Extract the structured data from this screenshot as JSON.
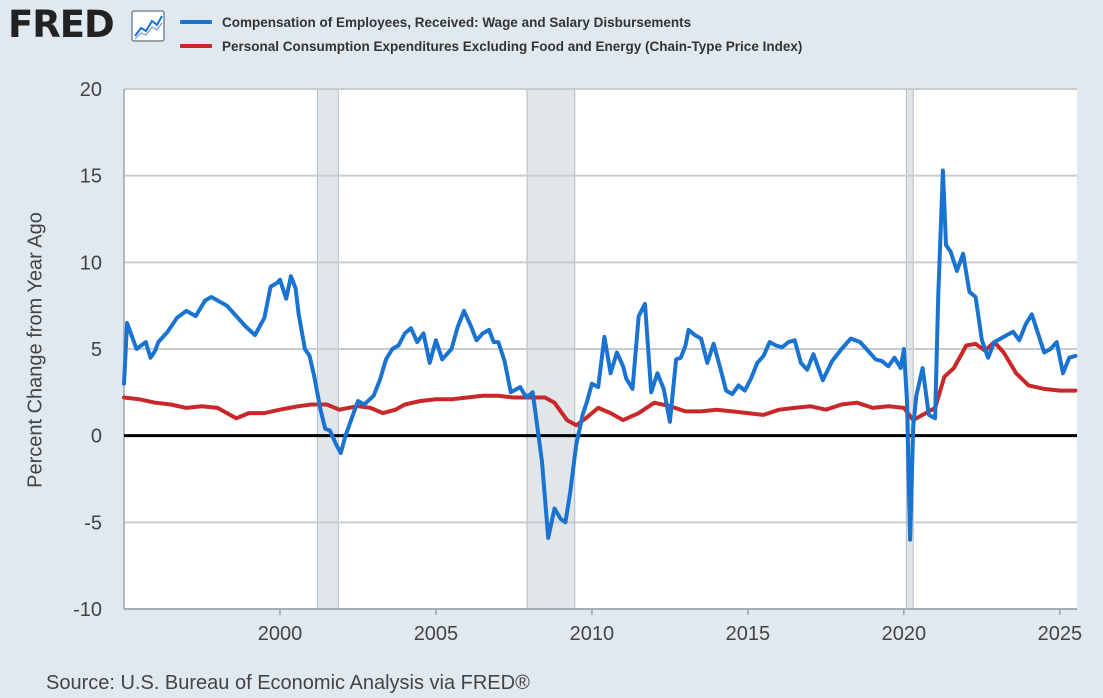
{
  "header": {
    "logo_text": "FRED",
    "logo_icon": "line-chart-icon"
  },
  "source_text": "Source: U.S. Bureau of Economic Analysis via FRED®",
  "chart_data": {
    "type": "line",
    "title": "",
    "xlabel": "",
    "ylabel": "Percent Change from Year Ago",
    "xlim": [
      1995.0,
      2025.55
    ],
    "ylim": [
      -10,
      20
    ],
    "yticks": [
      20,
      15,
      10,
      5,
      0,
      -5,
      -10
    ],
    "ytick_labels": [
      "20",
      "15",
      "10",
      "5",
      "0",
      "-5",
      "-10"
    ],
    "xticks": [
      2000,
      2005,
      2010,
      2015,
      2020,
      2025
    ],
    "xtick_labels": [
      "2000",
      "2005",
      "2010",
      "2015",
      "2020",
      "2025"
    ],
    "grid": "horizontal",
    "legend_position": "top",
    "zero_line": 0,
    "recessions": [
      {
        "start": 2001.2,
        "end": 2001.87
      },
      {
        "start": 2007.92,
        "end": 2009.45
      },
      {
        "start": 2020.08,
        "end": 2020.3
      }
    ],
    "colors": {
      "background": "#e1e9f0",
      "plot_bg": "#ffffff",
      "grid": "#c8cdd2",
      "recession": "#e1e6ea",
      "zero_line": "#000000"
    },
    "series": [
      {
        "name": "Compensation of Employees, Received: Wage and Salary Disbursements",
        "color": "#1a73d0",
        "x": [
          1995.0,
          1995.1,
          1995.4,
          1995.7,
          1995.85,
          1996.0,
          1996.1,
          1996.4,
          1996.7,
          1997.0,
          1997.3,
          1997.6,
          1997.8,
          1998.0,
          1998.3,
          1998.6,
          1998.9,
          1999.2,
          1999.5,
          1999.7,
          1999.9,
          2000.0,
          2000.2,
          2000.35,
          2000.5,
          2000.6,
          2000.8,
          2000.95,
          2001.1,
          2001.3,
          2001.45,
          2001.6,
          2001.8,
          2001.95,
          2002.1,
          2002.3,
          2002.5,
          2002.7,
          2003.0,
          2003.2,
          2003.4,
          2003.6,
          2003.8,
          2004.0,
          2004.2,
          2004.4,
          2004.6,
          2004.8,
          2005.0,
          2005.2,
          2005.5,
          2005.7,
          2005.9,
          2006.1,
          2006.3,
          2006.5,
          2006.7,
          2006.85,
          2007.0,
          2007.2,
          2007.4,
          2007.7,
          2007.9,
          2008.1,
          2008.4,
          2008.6,
          2008.8,
          2009.0,
          2009.15,
          2009.3,
          2009.5,
          2009.7,
          2009.85,
          2010.0,
          2010.2,
          2010.4,
          2010.6,
          2010.8,
          2011.0,
          2011.1,
          2011.3,
          2011.5,
          2011.7,
          2011.9,
          2012.1,
          2012.3,
          2012.5,
          2012.7,
          2012.85,
          2013.0,
          2013.1,
          2013.3,
          2013.5,
          2013.7,
          2013.9,
          2014.1,
          2014.3,
          2014.5,
          2014.7,
          2014.9,
          2015.1,
          2015.3,
          2015.5,
          2015.7,
          2015.9,
          2016.1,
          2016.3,
          2016.5,
          2016.7,
          2016.9,
          2017.1,
          2017.4,
          2017.7,
          2018.0,
          2018.3,
          2018.6,
          2018.9,
          2019.1,
          2019.3,
          2019.5,
          2019.7,
          2019.9,
          2020.0,
          2020.1,
          2020.2,
          2020.3,
          2020.4,
          2020.6,
          2020.8,
          2021.0,
          2021.1,
          2021.25,
          2021.35,
          2021.5,
          2021.7,
          2021.9,
          2022.1,
          2022.3,
          2022.5,
          2022.7,
          2022.9,
          2023.1,
          2023.3,
          2023.5,
          2023.7,
          2023.9,
          2024.1,
          2024.3,
          2024.5,
          2024.7,
          2024.9,
          2025.1,
          2025.3,
          2025.5
        ],
        "values": [
          3.0,
          6.5,
          5.0,
          5.4,
          4.5,
          4.9,
          5.4,
          6.0,
          6.8,
          7.2,
          6.9,
          7.8,
          8.0,
          7.8,
          7.5,
          6.9,
          6.3,
          5.8,
          6.8,
          8.6,
          8.8,
          9.0,
          7.9,
          9.2,
          8.5,
          7.0,
          5.0,
          4.6,
          3.4,
          1.5,
          0.4,
          0.3,
          -0.5,
          -1.0,
          0.0,
          1.0,
          2.0,
          1.8,
          2.3,
          3.2,
          4.4,
          5.0,
          5.2,
          5.9,
          6.2,
          5.4,
          5.9,
          4.2,
          5.5,
          4.4,
          5.0,
          6.3,
          7.2,
          6.4,
          5.5,
          5.9,
          6.1,
          5.4,
          5.4,
          4.3,
          2.5,
          2.8,
          2.2,
          2.5,
          -1.5,
          -5.9,
          -4.2,
          -4.8,
          -5.0,
          -3.3,
          -0.5,
          1.2,
          2.0,
          3.0,
          2.8,
          5.7,
          3.6,
          4.8,
          4.0,
          3.3,
          2.7,
          6.9,
          7.6,
          2.5,
          3.6,
          2.7,
          0.8,
          4.4,
          4.5,
          5.2,
          6.1,
          5.8,
          5.6,
          4.2,
          5.3,
          4.0,
          2.6,
          2.4,
          2.9,
          2.6,
          3.3,
          4.2,
          4.6,
          5.4,
          5.2,
          5.1,
          5.4,
          5.5,
          4.2,
          3.8,
          4.7,
          3.2,
          4.3,
          5.0,
          5.6,
          5.4,
          4.8,
          4.4,
          4.3,
          4.0,
          4.5,
          3.9,
          5.0,
          2.0,
          -6.0,
          0.5,
          2.3,
          3.9,
          1.2,
          1.0,
          8.0,
          15.3,
          11.0,
          10.6,
          9.5,
          10.5,
          8.3,
          8.0,
          5.5,
          4.5,
          5.4,
          5.6,
          5.8,
          6.0,
          5.5,
          6.4,
          7.0,
          5.9,
          4.8,
          5.0,
          5.4,
          3.6,
          4.5,
          4.6
        ]
      },
      {
        "name": "Personal Consumption Expenditures Excluding Food and Energy (Chain-Type Price Index)",
        "color": "#c9282a",
        "x": [
          1995.0,
          1995.5,
          1996.0,
          1996.5,
          1997.0,
          1997.5,
          1998.0,
          1998.3,
          1998.6,
          1999.0,
          1999.5,
          2000.0,
          2000.3,
          2000.6,
          2001.0,
          2001.5,
          2001.9,
          2002.2,
          2002.5,
          2002.9,
          2003.3,
          2003.7,
          2004.0,
          2004.5,
          2005.0,
          2005.5,
          2006.0,
          2006.5,
          2007.0,
          2007.5,
          2008.0,
          2008.5,
          2008.8,
          2009.2,
          2009.5,
          2009.8,
          2010.2,
          2010.6,
          2011.0,
          2011.5,
          2012.0,
          2012.5,
          2013.0,
          2013.5,
          2014.0,
          2014.5,
          2015.0,
          2015.5,
          2016.0,
          2016.5,
          2017.0,
          2017.5,
          2018.0,
          2018.5,
          2019.0,
          2019.5,
          2020.0,
          2020.3,
          2020.6,
          2021.0,
          2021.3,
          2021.6,
          2022.0,
          2022.3,
          2022.6,
          2022.9,
          2023.2,
          2023.6,
          2024.0,
          2024.5,
          2025.0,
          2025.5
        ],
        "values": [
          2.2,
          2.1,
          1.9,
          1.8,
          1.6,
          1.7,
          1.6,
          1.3,
          1.0,
          1.3,
          1.3,
          1.5,
          1.6,
          1.7,
          1.8,
          1.8,
          1.5,
          1.6,
          1.7,
          1.6,
          1.3,
          1.5,
          1.8,
          2.0,
          2.1,
          2.1,
          2.2,
          2.3,
          2.3,
          2.2,
          2.2,
          2.2,
          1.9,
          0.9,
          0.6,
          1.0,
          1.6,
          1.3,
          0.9,
          1.3,
          1.9,
          1.7,
          1.4,
          1.4,
          1.5,
          1.4,
          1.3,
          1.2,
          1.5,
          1.6,
          1.7,
          1.5,
          1.8,
          1.9,
          1.6,
          1.7,
          1.6,
          0.9,
          1.2,
          1.6,
          3.4,
          3.9,
          5.2,
          5.3,
          4.9,
          5.4,
          4.8,
          3.6,
          2.9,
          2.7,
          2.6,
          2.6
        ]
      }
    ]
  }
}
